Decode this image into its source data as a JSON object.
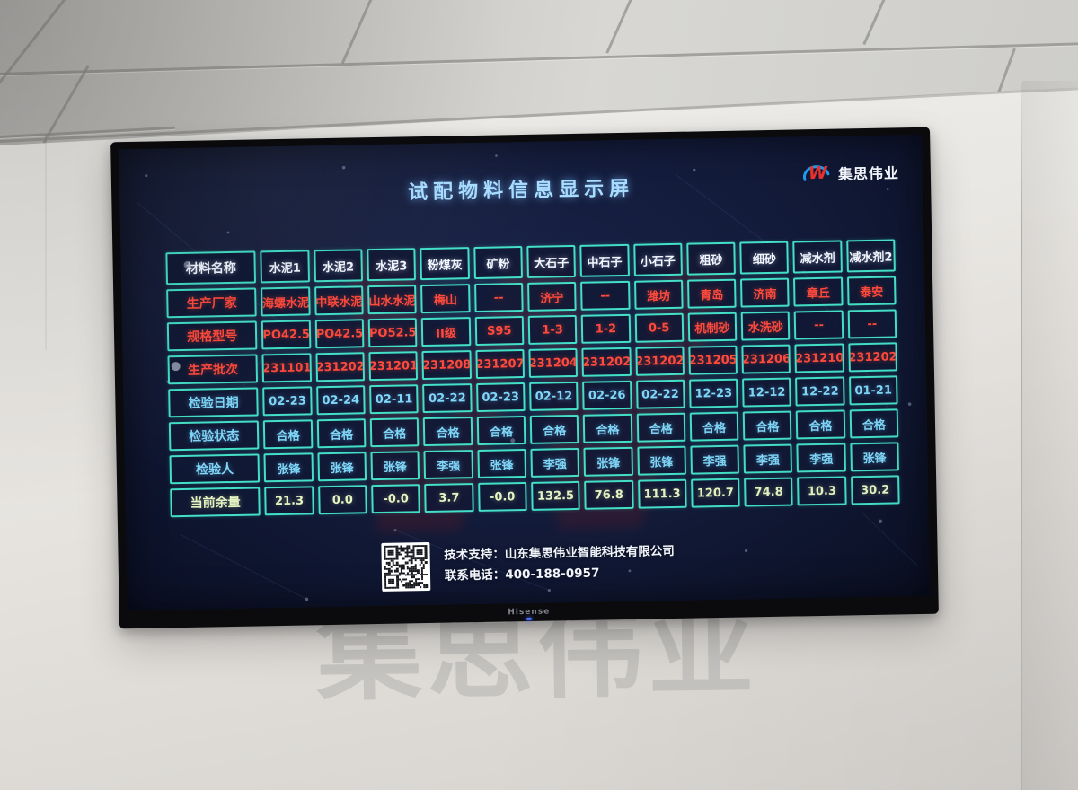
{
  "scene": {
    "wall_watermark": "集思伟业",
    "tv_brand": "Hisense"
  },
  "screen": {
    "title": "试配物料信息显示屏",
    "logo": {
      "name": "集思伟业",
      "mark": "W"
    },
    "table": {
      "header": [
        "材料名称",
        "水泥1",
        "水泥2",
        "水泥3",
        "粉煤灰",
        "矿粉",
        "大石子",
        "中石子",
        "小石子",
        "粗砂",
        "细砂",
        "减水剂",
        "减水剂2"
      ],
      "rows": [
        {
          "label": "生产厂家",
          "color": "red",
          "cells": [
            "海螺水泥",
            "中联水泥",
            "山水水泥",
            "梅山",
            "--",
            "济宁",
            "--",
            "潍坊",
            "青岛",
            "济南",
            "章丘",
            "泰安"
          ]
        },
        {
          "label": "规格型号",
          "color": "red",
          "cells": [
            "PO42.5",
            "PO42.5",
            "PO52.5",
            "II级",
            "S95",
            "1-3",
            "1-2",
            "0-5",
            "机制砂",
            "水洗砂",
            "--",
            "--"
          ]
        },
        {
          "label": "生产批次",
          "color": "red",
          "cells": [
            "231101",
            "231202",
            "231201",
            "231208",
            "231207",
            "231204",
            "231202",
            "231202",
            "231205",
            "231206",
            "231210",
            "231202"
          ]
        },
        {
          "label": "检验日期",
          "color": "cyan",
          "cells": [
            "02-23",
            "02-24",
            "02-11",
            "02-22",
            "02-23",
            "02-12",
            "02-26",
            "02-22",
            "12-23",
            "12-12",
            "12-22",
            "01-21"
          ]
        },
        {
          "label": "检验状态",
          "color": "cyan",
          "cells": [
            "合格",
            "合格",
            "合格",
            "合格",
            "合格",
            "合格",
            "合格",
            "合格",
            "合格",
            "合格",
            "合格",
            "合格"
          ]
        },
        {
          "label": "检验人",
          "color": "cyan",
          "cells": [
            "张锋",
            "张锋",
            "张锋",
            "李强",
            "张锋",
            "李强",
            "张锋",
            "张锋",
            "李强",
            "李强",
            "李强",
            "张锋"
          ]
        },
        {
          "label": "当前余量",
          "color": "green",
          "cells": [
            "21.3",
            "0.0",
            "-0.0",
            "3.7",
            "-0.0",
            "132.5",
            "76.8",
            "111.3",
            "120.7",
            "74.8",
            "10.3",
            "30.2"
          ]
        }
      ]
    },
    "footer": {
      "support": "技术支持：山东集思伟业智能科技有限公司",
      "phone": "联系电话：400-188-0957"
    },
    "colors": {
      "border": "#43dfc6",
      "red": "#ff4a3d",
      "cyan": "#7fd6f7",
      "green": "#e6f4c3",
      "white": "#f2f6ff",
      "title": "#a9ddff"
    }
  }
}
